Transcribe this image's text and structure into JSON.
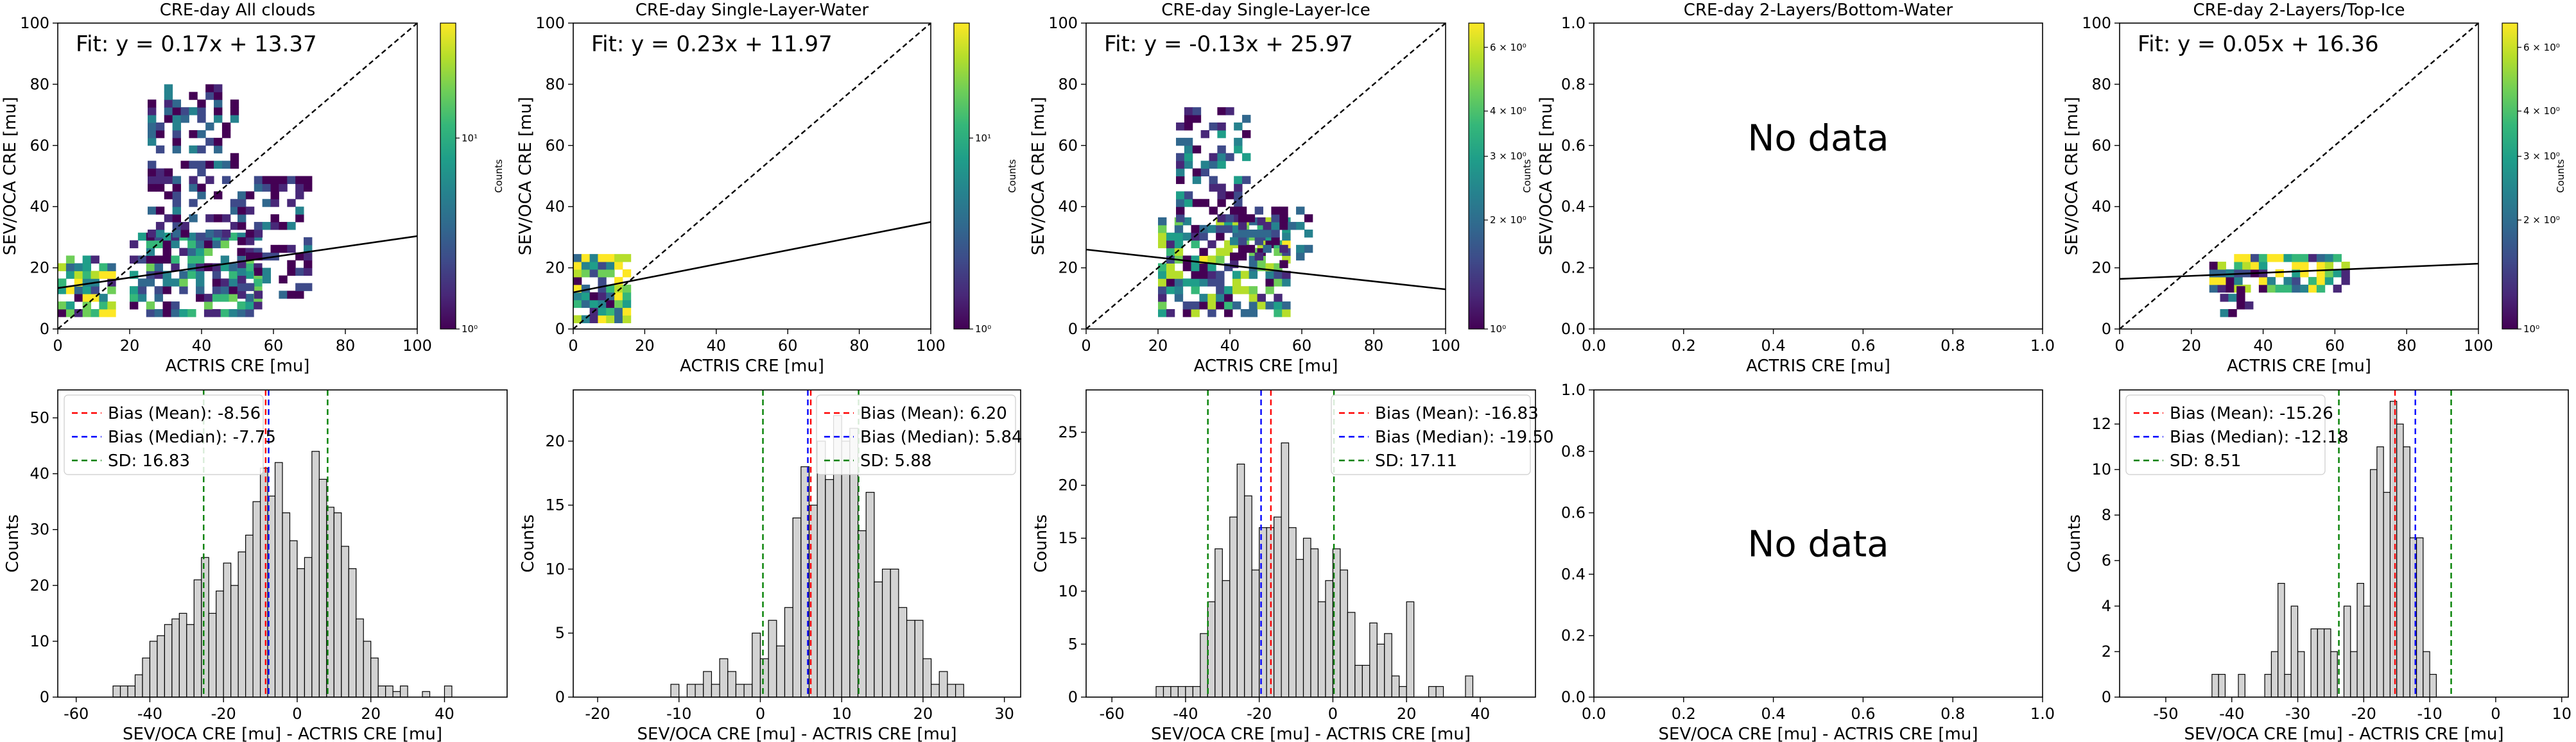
{
  "figure": {
    "background": "#ffffff"
  },
  "colors": {
    "fit_line": "#000000",
    "one_to_one": "#000000",
    "hist_fill": "#d3d3d3",
    "hist_edge": "#000000",
    "mean_line": "#ff0000",
    "median_line": "#0000ff",
    "sd_line": "#008000",
    "viridis": [
      "#440154",
      "#482878",
      "#3e4a89",
      "#31688e",
      "#26828e",
      "#1f9e89",
      "#35b779",
      "#6ece58",
      "#b5de2b",
      "#fde725"
    ]
  },
  "chart_data": [
    {
      "type": "heatmap",
      "title": "CRE-day All clouds",
      "xlabel": "ACTRIS CRE [mu]",
      "ylabel": "SEV/OCA CRE [mu]",
      "xlim": [
        0,
        100
      ],
      "ylim": [
        0,
        100
      ],
      "xticks": [
        "0",
        "20",
        "40",
        "60",
        "80",
        "100"
      ],
      "yticks": [
        "0",
        "20",
        "40",
        "60",
        "80",
        "100"
      ],
      "fit": {
        "label": "Fit: y = 0.17x + 13.37",
        "slope": 0.17,
        "intercept": 13.37
      },
      "one_to_one": true,
      "colorbar": {
        "label": "Counts",
        "scale": "log",
        "ticks": [
          "10⁰",
          "10¹"
        ],
        "range": [
          1,
          40
        ]
      },
      "clusters": [
        {
          "x": [
            0,
            14
          ],
          "y": [
            4,
            24
          ],
          "weight": 1.0
        },
        {
          "x": [
            20,
            55
          ],
          "y": [
            4,
            30
          ],
          "weight": 0.6
        },
        {
          "x": [
            25,
            50
          ],
          "y": [
            30,
            80
          ],
          "weight": 0.2
        },
        {
          "x": [
            50,
            70
          ],
          "y": [
            10,
            50
          ],
          "weight": 0.15
        }
      ]
    },
    {
      "type": "heatmap",
      "title": "CRE-day Single-Layer-Water",
      "xlabel": "ACTRIS CRE [mu]",
      "ylabel": "SEV/OCA CRE [mu]",
      "xlim": [
        0,
        100
      ],
      "ylim": [
        0,
        100
      ],
      "xticks": [
        "0",
        "20",
        "40",
        "60",
        "80",
        "100"
      ],
      "yticks": [
        "0",
        "20",
        "40",
        "60",
        "80",
        "100"
      ],
      "fit": {
        "label": "Fit: y = 0.23x + 11.97",
        "slope": 0.23,
        "intercept": 11.97
      },
      "one_to_one": true,
      "colorbar": {
        "label": "Counts",
        "scale": "log",
        "ticks": [
          "10⁰",
          "10¹"
        ],
        "range": [
          1,
          40
        ]
      },
      "clusters": [
        {
          "x": [
            0,
            14
          ],
          "y": [
            2,
            24
          ],
          "weight": 1.0
        }
      ]
    },
    {
      "type": "heatmap",
      "title": "CRE-day Single-Layer-Ice",
      "xlabel": "ACTRIS CRE [mu]",
      "ylabel": "SEV/OCA CRE [mu]",
      "xlim": [
        0,
        100
      ],
      "ylim": [
        0,
        100
      ],
      "xticks": [
        "0",
        "20",
        "40",
        "60",
        "80",
        "100"
      ],
      "yticks": [
        "0",
        "20",
        "40",
        "60",
        "80",
        "100"
      ],
      "fit": {
        "label": "Fit: y = -0.13x + 25.97",
        "slope": -0.13,
        "intercept": 25.97
      },
      "one_to_one": true,
      "colorbar": {
        "label": "Counts",
        "scale": "log",
        "ticks": [
          "10⁰",
          "2 × 10⁰",
          "3 × 10⁰",
          "4 × 10⁰",
          "6 × 10⁰"
        ],
        "range": [
          1,
          7
        ]
      },
      "clusters": [
        {
          "x": [
            20,
            55
          ],
          "y": [
            4,
            35
          ],
          "weight": 0.8
        },
        {
          "x": [
            25,
            45
          ],
          "y": [
            35,
            72
          ],
          "weight": 0.3
        },
        {
          "x": [
            40,
            62
          ],
          "y": [
            20,
            40
          ],
          "weight": 0.2
        }
      ]
    },
    {
      "type": "heatmap",
      "title": "CRE-day 2-Layers/Bottom-Water",
      "xlabel": "ACTRIS CRE [mu]",
      "ylabel": "SEV/OCA CRE [mu]",
      "xlim": [
        0,
        1
      ],
      "ylim": [
        0,
        1
      ],
      "xticks": [
        "0.0",
        "0.2",
        "0.4",
        "0.6",
        "0.8",
        "1.0"
      ],
      "yticks": [
        "0.0",
        "0.2",
        "0.4",
        "0.6",
        "0.8",
        "1.0"
      ],
      "no_data": "No data",
      "clusters": []
    },
    {
      "type": "heatmap",
      "title": "CRE-day 2-Layers/Top-Ice",
      "xlabel": "ACTRIS CRE [mu]",
      "ylabel": "SEV/OCA CRE [mu]",
      "xlim": [
        0,
        100
      ],
      "ylim": [
        0,
        100
      ],
      "xticks": [
        "0",
        "20",
        "40",
        "60",
        "80",
        "100"
      ],
      "yticks": [
        "0",
        "20",
        "40",
        "60",
        "80",
        "100"
      ],
      "fit": {
        "label": "Fit: y = 0.05x + 16.36",
        "slope": 0.05,
        "intercept": 16.36
      },
      "one_to_one": true,
      "colorbar": {
        "label": "Counts",
        "scale": "log",
        "ticks": [
          "10⁰",
          "2 × 10⁰",
          "3 × 10⁰",
          "4 × 10⁰",
          "6 × 10⁰"
        ],
        "range": [
          1,
          7
        ]
      },
      "clusters": [
        {
          "x": [
            25,
            62
          ],
          "y": [
            12,
            24
          ],
          "weight": 1.0
        },
        {
          "x": [
            28,
            36
          ],
          "y": [
            4,
            12
          ],
          "weight": 0.2
        }
      ]
    },
    {
      "type": "bar",
      "subtype": "histogram",
      "xlabel": "SEV/OCA CRE [mu] - ACTRIS CRE [mu]",
      "ylabel": "Counts",
      "xlim": [
        -65,
        57
      ],
      "ylim": [
        0,
        55
      ],
      "xticks": [
        "-60",
        "-40",
        "-20",
        "0",
        "20",
        "40"
      ],
      "yticks": [
        "0",
        "10",
        "20",
        "30",
        "40",
        "50"
      ],
      "bin_start": -50,
      "bin_width": 2,
      "values": [
        2,
        2,
        2,
        4,
        7,
        10,
        11,
        13,
        14,
        15,
        13,
        21,
        25,
        15,
        19,
        24,
        20,
        26,
        29,
        35,
        41,
        36,
        42,
        33,
        28,
        23,
        25,
        44,
        39,
        34,
        33,
        27,
        23,
        14,
        10,
        7,
        2,
        2,
        1,
        2,
        0,
        0,
        1,
        0,
        0,
        2
      ],
      "bias_mean": -8.56,
      "bias_median": -7.75,
      "sd": 16.83,
      "legend": [
        "Bias (Mean): -8.56",
        "Bias (Median): -7.75",
        "SD: 16.83"
      ]
    },
    {
      "type": "bar",
      "subtype": "histogram",
      "xlabel": "SEV/OCA CRE [mu] - ACTRIS CRE [mu]",
      "ylabel": "Counts",
      "xlim": [
        -23,
        32
      ],
      "ylim": [
        0,
        24
      ],
      "xticks": [
        "-20",
        "-10",
        "0",
        "10",
        "20",
        "30"
      ],
      "yticks": [
        "0",
        "5",
        "10",
        "15",
        "20"
      ],
      "bin_start": -11,
      "bin_width": 1,
      "values": [
        1,
        0,
        1,
        1,
        2,
        1,
        3,
        2,
        1,
        1,
        5,
        3,
        6,
        4,
        7,
        14,
        18,
        15,
        20,
        17,
        22,
        20,
        21,
        13,
        16,
        9,
        10,
        10,
        7,
        6,
        6,
        3,
        1,
        2,
        1,
        1
      ],
      "bias_mean": 6.2,
      "bias_median": 5.84,
      "sd": 5.88,
      "legend": [
        "Bias (Mean): 6.20",
        "Bias (Median): 5.84",
        "SD: 5.88"
      ]
    },
    {
      "type": "bar",
      "subtype": "histogram",
      "xlabel": "SEV/OCA CRE [mu] - ACTRIS CRE [mu]",
      "ylabel": "Counts",
      "xlim": [
        -67,
        55
      ],
      "ylim": [
        0,
        29
      ],
      "xticks": [
        "-60",
        "-40",
        "-20",
        "0",
        "20",
        "40"
      ],
      "yticks": [
        "0",
        "5",
        "10",
        "15",
        "20",
        "25"
      ],
      "bin_start": -48,
      "bin_width": 2,
      "values": [
        1,
        1,
        1,
        1,
        1,
        1,
        6,
        9,
        14,
        11,
        17,
        22,
        19,
        12,
        16,
        16,
        17,
        24,
        16,
        13,
        15,
        14,
        9,
        11,
        14,
        12,
        8,
        3,
        3,
        7,
        5,
        6,
        2,
        1,
        9,
        0,
        0,
        1,
        1,
        0,
        0,
        0,
        2
      ],
      "bias_mean": -16.83,
      "bias_median": -19.5,
      "sd": 17.11,
      "legend": [
        "Bias (Mean): -16.83",
        "Bias (Median): -19.50",
        "SD: 17.11"
      ]
    },
    {
      "type": "bar",
      "subtype": "histogram",
      "xlabel": "SEV/OCA CRE [mu] - ACTRIS CRE [mu]",
      "ylabel": "",
      "xlim": [
        0,
        1
      ],
      "ylim": [
        0,
        1
      ],
      "xticks": [
        "0.0",
        "0.2",
        "0.4",
        "0.6",
        "0.8",
        "1.0"
      ],
      "yticks": [
        "0.0",
        "0.2",
        "0.4",
        "0.6",
        "0.8",
        "1.0"
      ],
      "no_data": "No data",
      "values": []
    },
    {
      "type": "bar",
      "subtype": "histogram",
      "xlabel": "SEV/OCA CRE [mu] - ACTRIS CRE [mu]",
      "ylabel": "Counts",
      "xlim": [
        -57,
        11
      ],
      "ylim": [
        0,
        13.5
      ],
      "xticks": [
        "-50",
        "-40",
        "-30",
        "-20",
        "-10",
        "0",
        "10"
      ],
      "yticks": [
        "0",
        "2",
        "4",
        "6",
        "8",
        "10",
        "12"
      ],
      "bin_start": -43,
      "bin_width": 1,
      "values": [
        1,
        1,
        0,
        0,
        1,
        0,
        0,
        0,
        1,
        2,
        5,
        1,
        4,
        2,
        0,
        3,
        3,
        3,
        2,
        0,
        4,
        2,
        5,
        4,
        10,
        11,
        9,
        13,
        12,
        11,
        7,
        7,
        2,
        1
      ],
      "bias_mean": -15.26,
      "bias_median": -12.18,
      "sd": 8.51,
      "legend": [
        "Bias (Mean): -15.26",
        "Bias (Median): -12.18",
        "SD: 8.51"
      ]
    }
  ]
}
